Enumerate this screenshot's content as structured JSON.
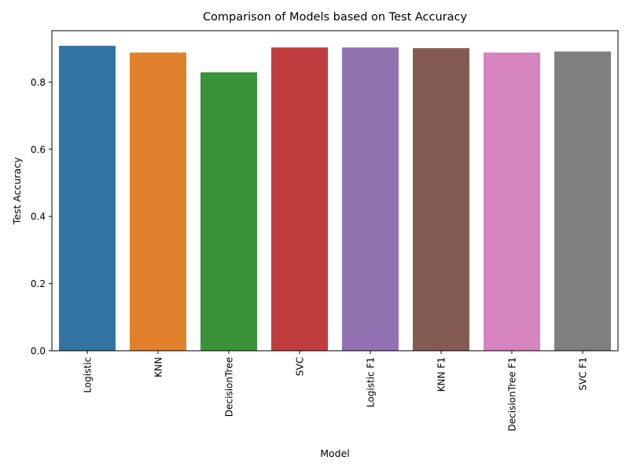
{
  "chart_data": {
    "type": "bar",
    "title": "Comparison of Models based on Test Accuracy",
    "xlabel": "Model",
    "ylabel": "Test Accuracy",
    "categories": [
      "Logistic",
      "KNN",
      "DecisionTree",
      "SVC",
      "Logistic F1",
      "KNN F1",
      "DecisionTree F1",
      "SVC F1"
    ],
    "values": [
      0.908,
      0.888,
      0.829,
      0.903,
      0.903,
      0.901,
      0.888,
      0.891
    ],
    "colors": [
      "#3274a1",
      "#e1812c",
      "#3a923a",
      "#c03d3e",
      "#9372b2",
      "#845b53",
      "#d684bd",
      "#7f7f7f"
    ],
    "ylim": [
      0,
      0.953
    ],
    "yticks": [
      0.0,
      0.2,
      0.4,
      0.6,
      0.8
    ],
    "ytick_labels": [
      "0.0",
      "0.2",
      "0.4",
      "0.6",
      "0.8"
    ],
    "grid": false,
    "legend": "none"
  }
}
